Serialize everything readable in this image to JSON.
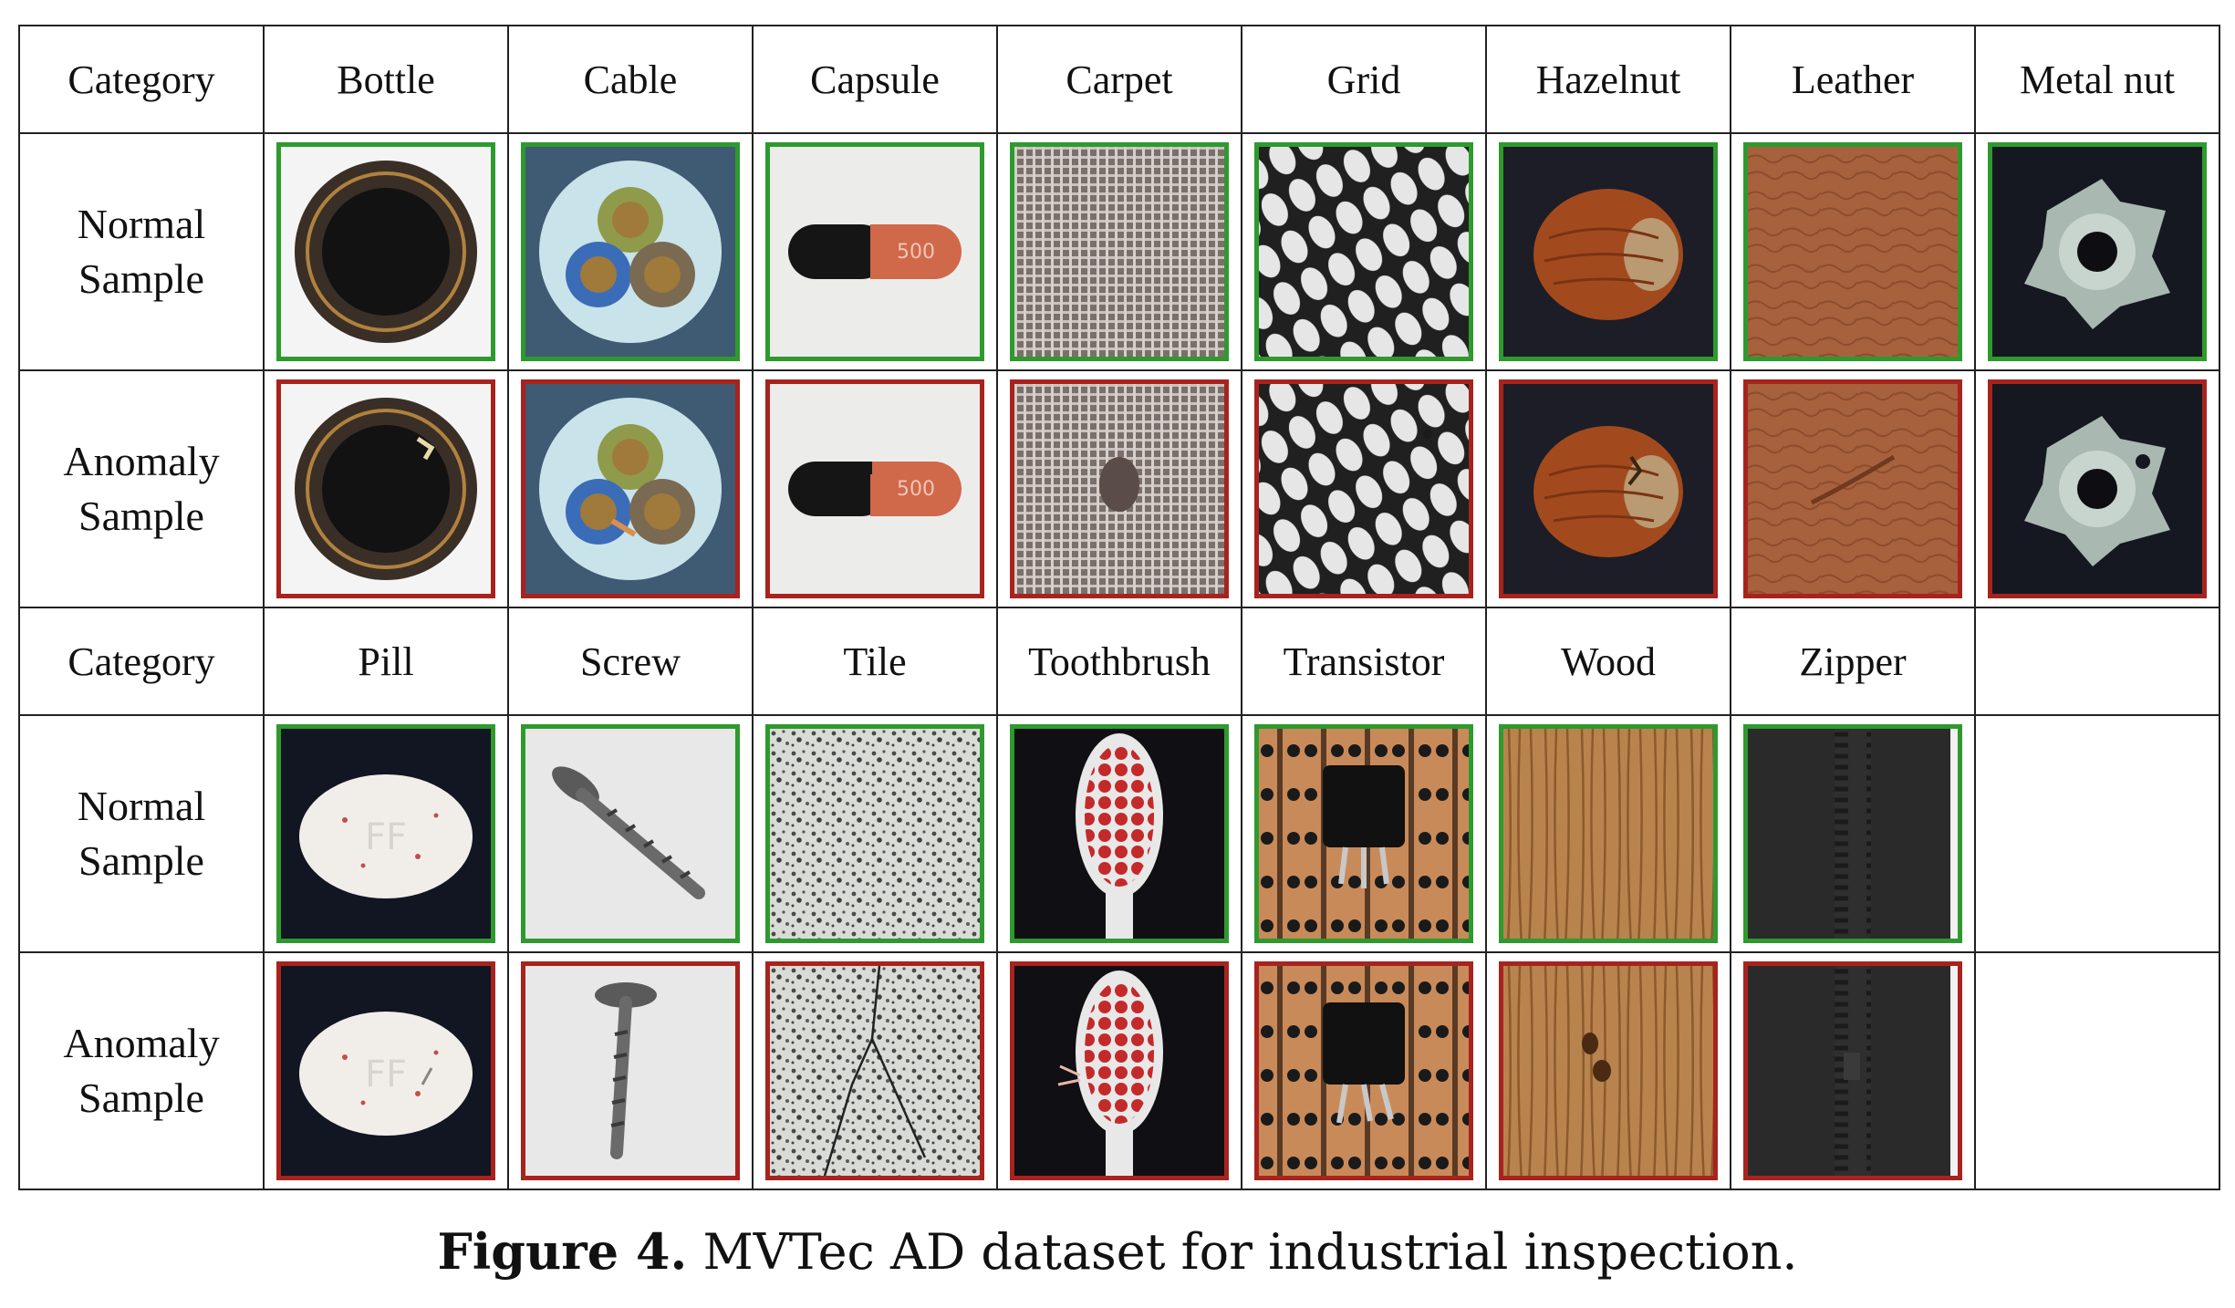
{
  "header_label": "Category",
  "row_labels": {
    "normal": [
      "Normal",
      "Sample"
    ],
    "anomaly": [
      "Anomaly",
      "Sample"
    ]
  },
  "categories_top": [
    "Bottle",
    "Cable",
    "Capsule",
    "Carpet",
    "Grid",
    "Hazelnut",
    "Leather",
    "Metal nut"
  ],
  "categories_bottom": [
    "Pill",
    "Screw",
    "Tile",
    "Toothbrush",
    "Transistor",
    "Wood",
    "Zipper"
  ],
  "capsule_print": "500",
  "pill_print": "FF",
  "frame_colors": {
    "normal": "#2e9a2e",
    "anomaly": "#a8231e"
  },
  "caption": {
    "label": "Figure 4.",
    "text": " MVTec AD dataset for industrial inspection."
  }
}
